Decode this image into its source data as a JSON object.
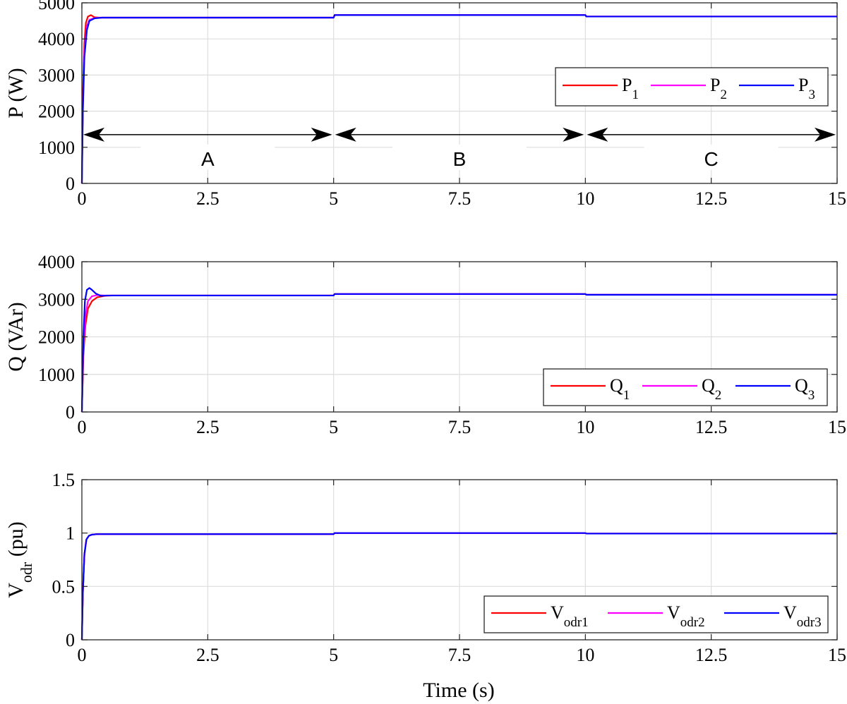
{
  "xlabel": "Time (s)",
  "chart_data": [
    {
      "type": "line",
      "id": "P",
      "ylabel": {
        "main": "P (W)"
      },
      "xlim": [
        0,
        15
      ],
      "ylim": [
        0,
        5000
      ],
      "xticks": [
        0,
        2.5,
        5,
        7.5,
        10,
        12.5,
        15
      ],
      "xtick_labels": [
        "0",
        "2.5",
        "5",
        "7.5",
        "10",
        "12.5",
        "15"
      ],
      "yticks": [
        0,
        1000,
        2000,
        3000,
        4000,
        5000
      ],
      "ytick_labels": [
        "0",
        "1000",
        "2000",
        "3000",
        "4000",
        "5000"
      ],
      "grid": true,
      "legend_position": "upper-right",
      "series": [
        {
          "name": "P",
          "sub": "1",
          "color": "#ff0000",
          "x": [
            0,
            0.02,
            0.05,
            0.08,
            0.12,
            0.18,
            0.25,
            0.35,
            5,
            5.02,
            10,
            10.02,
            15
          ],
          "y": [
            0,
            2500,
            3900,
            4450,
            4620,
            4660,
            4600,
            4590,
            4590,
            4660,
            4660,
            4620,
            4620
          ]
        },
        {
          "name": "P",
          "sub": "2",
          "color": "#ff00ff",
          "x": [
            0,
            0.02,
            0.05,
            0.1,
            0.15,
            0.25,
            0.4,
            5,
            5.02,
            10,
            10.02,
            15
          ],
          "y": [
            0,
            2200,
            3700,
            4350,
            4530,
            4580,
            4590,
            4590,
            4660,
            4660,
            4620,
            4620
          ]
        },
        {
          "name": "P",
          "sub": "3",
          "color": "#0000ff",
          "x": [
            0,
            0.02,
            0.05,
            0.1,
            0.15,
            0.25,
            0.4,
            5,
            5.02,
            10,
            10.02,
            15
          ],
          "y": [
            0,
            2000,
            3500,
            4250,
            4500,
            4570,
            4590,
            4590,
            4660,
            4660,
            4620,
            4620
          ]
        }
      ],
      "annotations": [
        {
          "label": "A",
          "x_from": 0,
          "x_to": 5,
          "y": 1350
        },
        {
          "label": "B",
          "x_from": 5,
          "x_to": 10,
          "y": 1350
        },
        {
          "label": "C",
          "x_from": 10,
          "x_to": 15,
          "y": 1350
        }
      ]
    },
    {
      "type": "line",
      "id": "Q",
      "ylabel": {
        "main": "Q (VAr)"
      },
      "xlim": [
        0,
        15
      ],
      "ylim": [
        0,
        4000
      ],
      "xticks": [
        0,
        2.5,
        5,
        7.5,
        10,
        12.5,
        15
      ],
      "xtick_labels": [
        "0",
        "2.5",
        "5",
        "7.5",
        "10",
        "12.5",
        "15"
      ],
      "yticks": [
        0,
        1000,
        2000,
        3000,
        4000
      ],
      "ytick_labels": [
        "0",
        "1000",
        "2000",
        "3000",
        "4000"
      ],
      "grid": true,
      "legend_position": "lower-right",
      "series": [
        {
          "name": "Q",
          "sub": "1",
          "color": "#ff0000",
          "x": [
            0,
            0.03,
            0.07,
            0.12,
            0.2,
            0.3,
            0.45,
            0.6,
            5,
            5.02,
            10,
            10.02,
            15
          ],
          "y": [
            0,
            1500,
            2300,
            2750,
            2950,
            3050,
            3090,
            3100,
            3100,
            3140,
            3140,
            3120,
            3120
          ]
        },
        {
          "name": "Q",
          "sub": "2",
          "color": "#ff00ff",
          "x": [
            0,
            0.03,
            0.07,
            0.12,
            0.2,
            0.3,
            0.45,
            5,
            5.02,
            10,
            10.02,
            15
          ],
          "y": [
            0,
            1700,
            2550,
            2950,
            3080,
            3110,
            3100,
            3100,
            3140,
            3140,
            3120,
            3120
          ]
        },
        {
          "name": "Q",
          "sub": "3",
          "color": "#0000ff",
          "x": [
            0,
            0.03,
            0.06,
            0.1,
            0.15,
            0.2,
            0.28,
            0.38,
            0.5,
            5,
            5.02,
            10,
            10.02,
            15
          ],
          "y": [
            0,
            2000,
            2950,
            3250,
            3300,
            3250,
            3150,
            3090,
            3100,
            3100,
            3140,
            3140,
            3120,
            3120
          ]
        }
      ]
    },
    {
      "type": "line",
      "id": "V",
      "ylabel": {
        "main": "V",
        "sub": "odr",
        "suffix": " (pu)"
      },
      "xlim": [
        0,
        15
      ],
      "ylim": [
        0,
        1.5
      ],
      "xticks": [
        0,
        2.5,
        5,
        7.5,
        10,
        12.5,
        15
      ],
      "xtick_labels": [
        "0",
        "2.5",
        "5",
        "7.5",
        "10",
        "12.5",
        "15"
      ],
      "yticks": [
        0,
        0.5,
        1,
        1.5
      ],
      "ytick_labels": [
        "0",
        "0.5",
        "1",
        "1.5"
      ],
      "grid": true,
      "legend_position": "lower-right",
      "series": [
        {
          "name": "V",
          "sub": "odr1",
          "color": "#ff0000",
          "x": [
            0,
            0.02,
            0.05,
            0.09,
            0.14,
            0.2,
            0.3,
            5,
            5.02,
            10,
            10.02,
            15
          ],
          "y": [
            0,
            0.45,
            0.8,
            0.94,
            0.975,
            0.985,
            0.99,
            0.99,
            1.0,
            1.0,
            0.995,
            0.995
          ]
        },
        {
          "name": "V",
          "sub": "odr2",
          "color": "#ff00ff",
          "x": [
            0,
            0.02,
            0.05,
            0.09,
            0.14,
            0.2,
            0.3,
            5,
            5.02,
            10,
            10.02,
            15
          ],
          "y": [
            0,
            0.45,
            0.8,
            0.94,
            0.975,
            0.985,
            0.99,
            0.99,
            1.0,
            1.0,
            0.995,
            0.995
          ]
        },
        {
          "name": "V",
          "sub": "odr3",
          "color": "#0000ff",
          "x": [
            0,
            0.02,
            0.05,
            0.09,
            0.14,
            0.2,
            0.3,
            5,
            5.02,
            10,
            10.02,
            15
          ],
          "y": [
            0,
            0.45,
            0.8,
            0.94,
            0.975,
            0.985,
            0.99,
            0.99,
            1.0,
            1.0,
            0.995,
            0.995
          ]
        }
      ]
    }
  ]
}
